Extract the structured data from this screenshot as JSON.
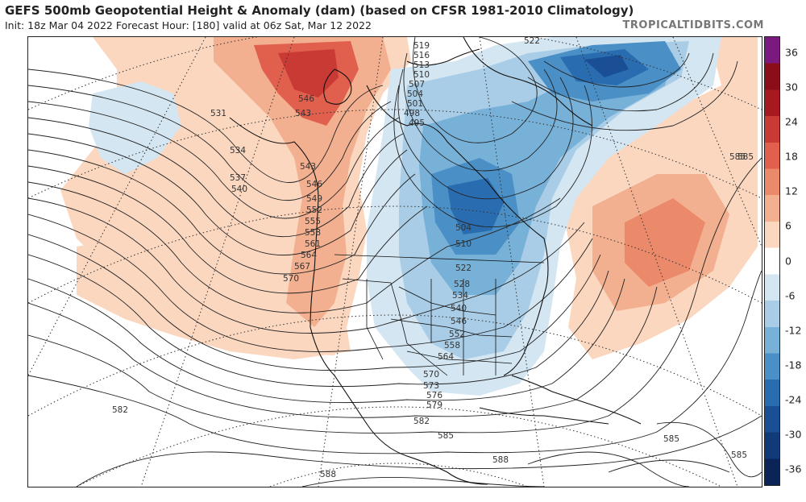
{
  "header": {
    "title": "GEFS 500mb Geopotential Height & Anomaly (dam) (based on CFSR 1981-2010 Climatology)",
    "subtitle": "Init: 18z Mar 04 2022   Forecast Hour: [180]   valid at 06z Sat, Mar 12 2022",
    "credit": "TROPICALTIDBITS.COM"
  },
  "colorbar": {
    "units": "dam",
    "labels": [
      "36",
      "30",
      "24",
      "18",
      "12",
      "6",
      "0",
      "-6",
      "-12",
      "-18",
      "-24",
      "-30",
      "-36"
    ],
    "colors": [
      "#7b1a7e",
      "#8c0d1a",
      "#a8191f",
      "#c93a34",
      "#e05f4d",
      "#eb8a6b",
      "#f3b090",
      "#fbd7c0",
      "#ffffff",
      "#d4e6f1",
      "#a9cde6",
      "#78b1d8",
      "#4a8fc5",
      "#2a6cb0",
      "#1a4f96",
      "#103a78",
      "#0a2458"
    ]
  },
  "map": {
    "contour_labels": [
      "519",
      "516",
      "513",
      "510",
      "507",
      "504",
      "501",
      "498",
      "495",
      "546",
      "543",
      "531",
      "534",
      "537",
      "540",
      "543",
      "546",
      "549",
      "552",
      "555",
      "558",
      "561",
      "564",
      "567",
      "570",
      "504",
      "510",
      "522",
      "528",
      "534",
      "540",
      "546",
      "552",
      "558",
      "564",
      "570",
      "573",
      "576",
      "579",
      "582",
      "585",
      "588",
      "588",
      "582",
      "585",
      "585",
      "585",
      "522",
      "585"
    ]
  }
}
